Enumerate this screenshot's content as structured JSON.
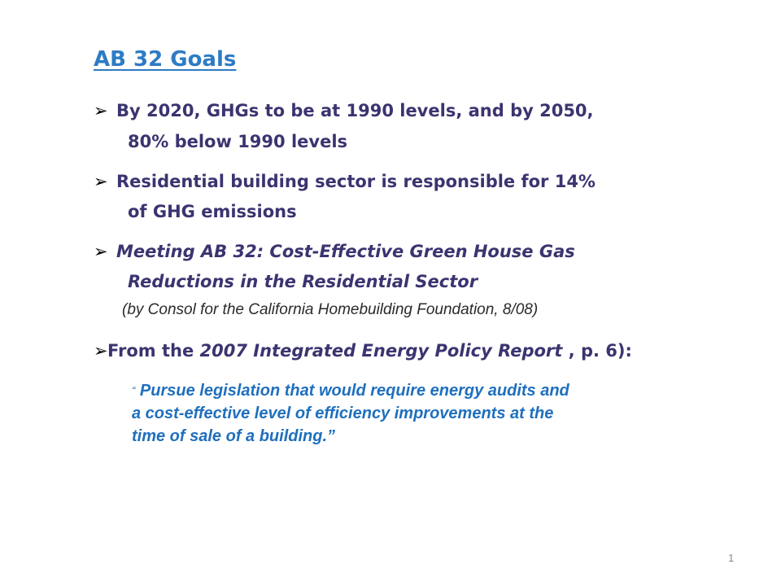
{
  "slide": {
    "title": "AB 32 Goals",
    "bullets": [
      {
        "marker": "➢",
        "line1": "By 2020, GHGs to be at 1990 levels, and by 2050,",
        "line2": "80% below 1990 levels"
      },
      {
        "marker": "➢",
        "line1": "Residential building sector is responsible for 14%",
        "line2": "of GHG emissions"
      },
      {
        "marker": "➢",
        "line1": "Meeting AB 32: Cost-Effective Green House Gas",
        "line2": "Reductions in the Residential Sector",
        "source": "(by Consol for the California Homebuilding Foundation, 8/08)"
      },
      {
        "marker": "➢",
        "prefix": "From the ",
        "report": "2007 Integrated Energy Policy Report",
        "suffix": " , p. 6):"
      }
    ],
    "quote": {
      "open_mark": "“",
      "line1": "Pursue legislation that would require energy audits and",
      "line2": "a cost-effective level of efficiency improvements at the",
      "line3": "time of sale of a building.”"
    },
    "page_number": "1"
  },
  "colors": {
    "title": "#2e7bc4",
    "bullet_text": "#3a3470",
    "quote_text": "#1f6fbd",
    "page_number": "#8a8a8a"
  },
  "icons": {
    "bullet_marker": "arrowhead-bullet-icon"
  }
}
